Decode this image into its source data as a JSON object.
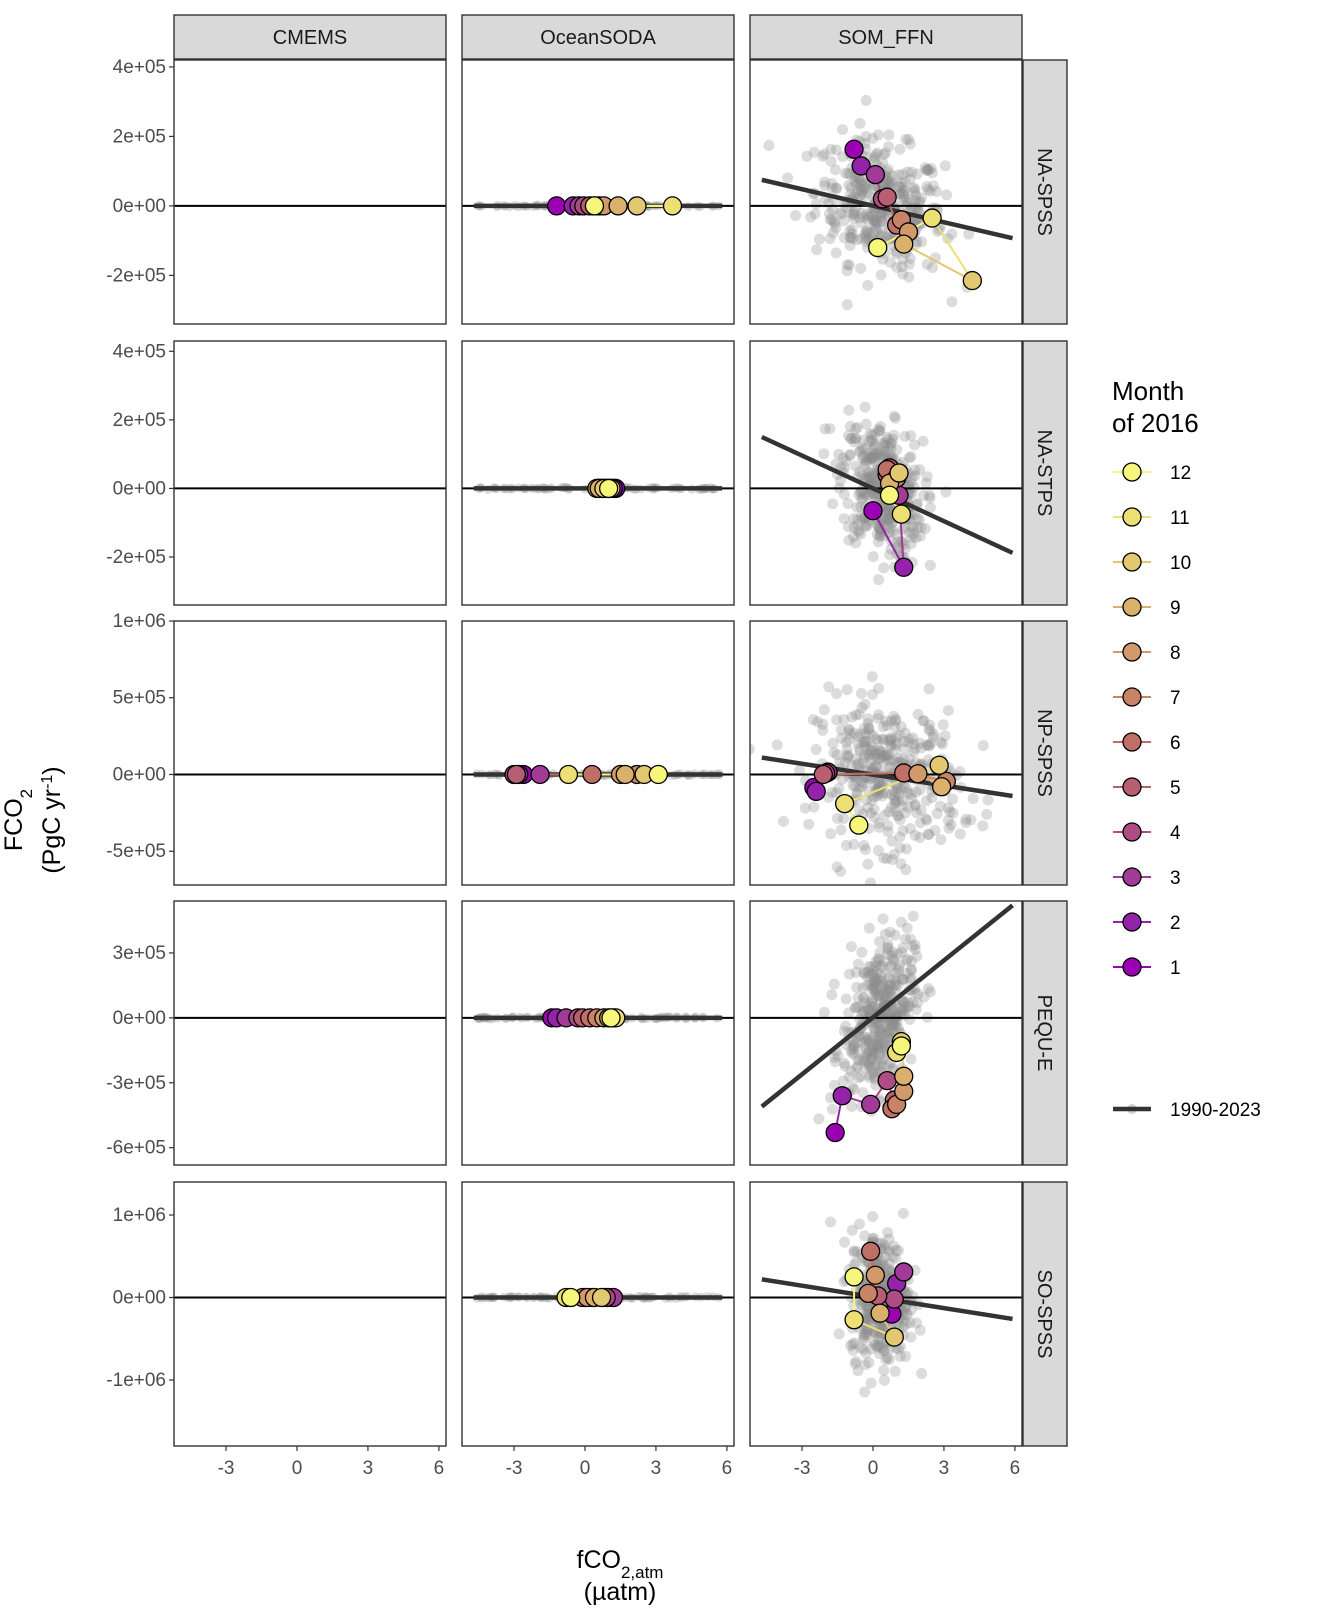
{
  "chart_data": {
    "type": "scatter",
    "columns": [
      "CMEMS",
      "OceanSODA",
      "SOM_FFN"
    ],
    "rows": [
      {
        "label": "NA-SPSS",
        "ylim": [
          -340000,
          420000
        ],
        "yticks": [
          -200000,
          0,
          200000,
          400000
        ],
        "yticklabels": [
          "-2e+05",
          "0e+00",
          "2e+05",
          "4e+05"
        ]
      },
      {
        "label": "NA-STPS",
        "ylim": [
          -340000,
          430000
        ],
        "yticks": [
          -200000,
          0,
          200000,
          400000
        ],
        "yticklabels": [
          "-2e+05",
          "0e+00",
          "2e+05",
          "4e+05"
        ]
      },
      {
        "label": "NP-SPSS",
        "ylim": [
          -720000,
          1000000
        ],
        "yticks": [
          -500000,
          0,
          500000,
          1000000
        ],
        "yticklabels": [
          "-5e+05",
          "0e+00",
          "5e+05",
          "1e+06"
        ]
      },
      {
        "label": "PEQU-E",
        "ylim": [
          -680000,
          540000
        ],
        "yticks": [
          -600000,
          -300000,
          0,
          300000
        ],
        "yticklabels": [
          "-6e+05",
          "-3e+05",
          "0e+00",
          "3e+05"
        ]
      },
      {
        "label": "SO-SPSS",
        "ylim": [
          -1800000,
          1400000
        ],
        "yticks": [
          -1000000,
          0,
          1000000
        ],
        "yticklabels": [
          "-1e+06",
          "0e+00",
          "1e+06"
        ]
      }
    ],
    "xlim": [
      -5.2,
      6.3
    ],
    "xticks": [
      -3,
      0,
      3,
      6
    ],
    "xticklabels": [
      "-3",
      "0",
      "3",
      "6"
    ],
    "xlabel_main": "fCO",
    "xlabel_sub": "2,atm",
    "xlabel_unit": "(µatm)",
    "ylabel_main": "FCO",
    "ylabel_sub": "2",
    "ylabel_unit_a": "(PgC yr",
    "ylabel_unit_sup": "-1",
    "ylabel_unit_b": ")",
    "legend": {
      "title_line1": "Month",
      "title_line2": "of 2016",
      "months": [
        "12",
        "11",
        "10",
        "9",
        "8",
        "7",
        "6",
        "5",
        "4",
        "3",
        "2",
        "1"
      ],
      "month_colors": [
        "#f6f77a",
        "#ecdf74",
        "#e2c870",
        "#dab06d",
        "#d2996a",
        "#c98468",
        "#c06f67",
        "#b75e71",
        "#ad4d83",
        "#a23a97",
        "#9423aa",
        "#9c00b4"
      ],
      "trend_label": "1990-2023"
    },
    "colors": {
      "background_points": "#8c8c8c",
      "trend_line": "#333333",
      "zero_line": "#000000",
      "strip_fill": "#d9d9d9",
      "panel_border": "#333333"
    },
    "trend_lines": {
      "OceanSODA": [
        {
          "x": [
            -4.7,
            5.8
          ],
          "y": [
            0,
            0
          ]
        },
        {
          "x": [
            -4.7,
            5.8
          ],
          "y": [
            0,
            0
          ]
        },
        {
          "x": [
            -4.7,
            5.8
          ],
          "y": [
            0,
            0
          ]
        },
        {
          "x": [
            -4.7,
            5.8
          ],
          "y": [
            0,
            0
          ]
        },
        {
          "x": [
            -4.7,
            5.8
          ],
          "y": [
            0,
            0
          ]
        }
      ],
      "SOM_FFN": [
        {
          "x": [
            -4.7,
            5.9
          ],
          "y": [
            75000,
            -93000
          ]
        },
        {
          "x": [
            -4.7,
            5.9
          ],
          "y": [
            150000,
            -188000
          ]
        },
        {
          "x": [
            -4.7,
            5.9
          ],
          "y": [
            110000,
            -140000
          ]
        },
        {
          "x": [
            -4.7,
            5.9
          ],
          "y": [
            -410000,
            520000
          ]
        },
        {
          "x": [
            -4.7,
            5.9
          ],
          "y": [
            220000,
            -260000
          ]
        }
      ]
    },
    "series": {
      "OceanSODA": [
        {
          "x": [
            -1.2,
            -0.5,
            -0.25,
            -0.05,
            0.2,
            0.4,
            0.6,
            0.8,
            1.4,
            2.2,
            3.7,
            0.4
          ],
          "y": [
            0,
            0,
            0,
            0,
            0,
            0,
            0,
            0,
            0,
            0,
            0,
            0
          ]
        },
        {
          "x": [
            1.3,
            1.2,
            1.0,
            0.9,
            0.8,
            0.7,
            0.6,
            0.5,
            0.6,
            0.8,
            1.1,
            1.0
          ],
          "y": [
            0,
            0,
            0,
            0,
            0,
            0,
            0,
            0,
            0,
            0,
            0,
            0
          ]
        },
        {
          "x": [
            -2.6,
            -2.8,
            -1.9,
            -3.0,
            -2.9,
            0.3,
            2.2,
            1.5,
            1.7,
            2.5,
            -0.7,
            3.1
          ],
          "y": [
            0,
            0,
            0,
            0,
            0,
            0,
            0,
            0,
            0,
            0,
            0,
            0
          ]
        },
        {
          "x": [
            -1.4,
            -1.2,
            -0.8,
            -0.3,
            -0.1,
            0.2,
            0.5,
            0.8,
            1.0,
            1.2,
            1.3,
            1.1
          ],
          "y": [
            0,
            0,
            0,
            0,
            0,
            0,
            0,
            0,
            0,
            0,
            0,
            0
          ]
        },
        {
          "x": [
            0.8,
            1.0,
            1.2,
            0.9,
            0.3,
            0.0,
            -0.1,
            0.1,
            0.4,
            0.7,
            -0.8,
            -0.6
          ],
          "y": [
            0,
            0,
            0,
            0,
            0,
            0,
            0,
            0,
            0,
            0,
            0,
            0
          ]
        }
      ],
      "SOM_FFN": [
        {
          "x": [
            -0.8,
            -0.5,
            0.1,
            0.4,
            0.6,
            1.0,
            1.2,
            1.5,
            1.3,
            4.2,
            2.5,
            0.2
          ],
          "y": [
            163000,
            115000,
            90000,
            20000,
            25000,
            -55000,
            -40000,
            -75000,
            -110000,
            -215000,
            -35000,
            -120000
          ]
        },
        {
          "x": [
            0.0,
            1.3,
            1.1,
            0.6,
            0.7,
            0.6,
            1.0,
            1.1,
            0.7,
            1.1,
            1.2,
            0.7
          ],
          "y": [
            -65000,
            -230000,
            -20000,
            40000,
            60000,
            55000,
            30000,
            45000,
            15000,
            45000,
            -75000,
            -20000
          ]
        },
        {
          "x": [
            -2.5,
            -2.4,
            -1.9,
            -2.0,
            -2.1,
            1.3,
            3.1,
            1.9,
            2.9,
            2.8,
            -1.2,
            -0.6
          ],
          "y": [
            -85000,
            -110000,
            15000,
            8000,
            0,
            10000,
            -45000,
            5000,
            -80000,
            60000,
            -190000,
            -330000
          ]
        },
        {
          "x": [
            -1.6,
            -1.3,
            -0.1,
            0.6,
            0.9,
            0.8,
            1.0,
            1.3,
            1.3,
            1.2,
            1.0,
            1.2
          ],
          "y": [
            -530000,
            -360000,
            -400000,
            -290000,
            -380000,
            -420000,
            -400000,
            -340000,
            -270000,
            -110000,
            -160000,
            -130000
          ]
        },
        {
          "x": [
            0.8,
            1.0,
            1.3,
            0.9,
            0.2,
            -0.1,
            -0.2,
            0.1,
            0.3,
            0.9,
            -0.8,
            -0.8
          ],
          "y": [
            -200000,
            170000,
            310000,
            -20000,
            20000,
            560000,
            50000,
            270000,
            -190000,
            -480000,
            -270000,
            250000
          ]
        }
      ]
    }
  }
}
